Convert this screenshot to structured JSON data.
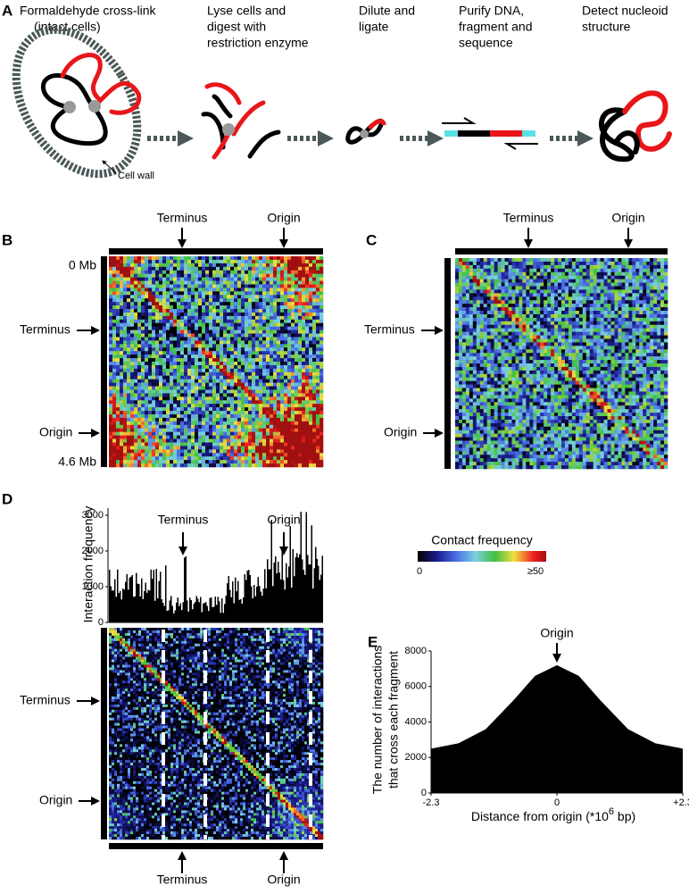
{
  "panel_a": {
    "label": "A",
    "steps": [
      [
        "Formaldehyde cross-link",
        "(intact cells)"
      ],
      [
        "Lyse cells and",
        "digest with",
        "restriction enzyme"
      ],
      [
        "Dilute and",
        "ligate"
      ],
      [
        "Purify DNA,",
        "fragment and",
        "sequence"
      ],
      [
        "Detect nucleoid",
        "structure"
      ]
    ],
    "cell_wall": "Cell wall"
  },
  "panel_b": {
    "label": "B",
    "top": [
      "Terminus",
      "Origin"
    ],
    "left": [
      "0 Mb",
      "Terminus",
      "Origin",
      "4.6 Mb"
    ]
  },
  "panel_c": {
    "label": "C",
    "top": [
      "Terminus",
      "Origin"
    ],
    "left": [
      "Terminus",
      "Origin"
    ]
  },
  "panel_d": {
    "label": "D",
    "y_label": "Interaction frequency",
    "ylim": [
      0,
      3200
    ],
    "yticks": [
      0,
      1000,
      2000,
      3000
    ],
    "top": [
      "Terminus",
      "Origin"
    ],
    "left": [
      "Terminus",
      "Origin"
    ],
    "bottom": [
      "Terminus",
      "Origin"
    ]
  },
  "colorbar": {
    "title": "Contact frequency",
    "min_label": "0",
    "max_label": "≥50"
  },
  "panel_e": {
    "label": "E",
    "annotation": "Origin",
    "y_label": [
      "The number of interactions",
      "that cross each fragment"
    ],
    "x_label": [
      "Distance from origin (*10",
      "6",
      " bp)"
    ],
    "x": [
      -2.3,
      -1.8,
      -1.3,
      -0.8,
      -0.4,
      0,
      0.4,
      0.8,
      1.3,
      1.8,
      2.3
    ],
    "values": [
      2500,
      2800,
      3600,
      5200,
      6600,
      7200,
      6600,
      5200,
      3600,
      2800,
      2500
    ],
    "xlim": [
      -2.3,
      2.3
    ],
    "ylim": [
      0,
      8000
    ],
    "yticks": [
      0,
      2000,
      4000,
      6000,
      8000
    ],
    "xticks": [
      -2.3,
      0,
      {
        "value": 2.3,
        "label": "+2.3"
      }
    ]
  }
}
